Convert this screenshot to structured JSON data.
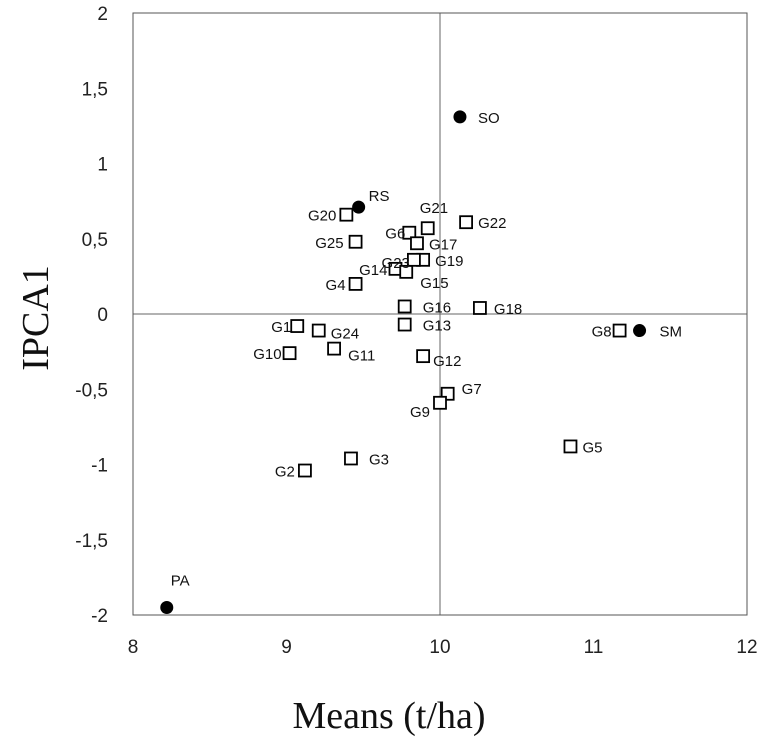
{
  "chart_data": {
    "type": "scatter",
    "title": "",
    "xlabel": "Means (t/ha)",
    "ylabel": "IPCA1",
    "xlim": [
      8,
      12
    ],
    "ylim": [
      -2,
      2
    ],
    "x_ticks": [
      "8",
      "9",
      "10",
      "11",
      "12"
    ],
    "y_ticks": [
      "-2",
      "-1,5",
      "-1",
      "-0,5",
      "0",
      "0,5",
      "1",
      "1,5",
      "2"
    ],
    "grid": false,
    "reference_lines": {
      "x": 10.0,
      "y": 0
    },
    "series": [
      {
        "marker": "open-square",
        "points": [
          {
            "label": "G1",
            "x": 9.07,
            "y": -0.08
          },
          {
            "label": "G2",
            "x": 9.12,
            "y": -1.04
          },
          {
            "label": "G3",
            "x": 9.42,
            "y": -0.96
          },
          {
            "label": "G4",
            "x": 9.45,
            "y": 0.2
          },
          {
            "label": "G5",
            "x": 10.85,
            "y": -0.88
          },
          {
            "label": "G6",
            "x": 9.8,
            "y": 0.54
          },
          {
            "label": "G7",
            "x": 10.05,
            "y": -0.53
          },
          {
            "label": "G8",
            "x": 11.17,
            "y": -0.11
          },
          {
            "label": "G9",
            "x": 10.0,
            "y": -0.59
          },
          {
            "label": "G10",
            "x": 9.02,
            "y": -0.26
          },
          {
            "label": "G11",
            "x": 9.31,
            "y": -0.23
          },
          {
            "label": "G12",
            "x": 9.89,
            "y": -0.28
          },
          {
            "label": "G13",
            "x": 9.77,
            "y": -0.07
          },
          {
            "label": "G14",
            "x": 9.71,
            "y": 0.3
          },
          {
            "label": "G15",
            "x": 9.78,
            "y": 0.28
          },
          {
            "label": "G16",
            "x": 9.77,
            "y": 0.05
          },
          {
            "label": "G17",
            "x": 9.85,
            "y": 0.47
          },
          {
            "label": "G18",
            "x": 10.26,
            "y": 0.04
          },
          {
            "label": "G19",
            "x": 9.89,
            "y": 0.36
          },
          {
            "label": "G20",
            "x": 9.39,
            "y": 0.66
          },
          {
            "label": "G21",
            "x": 9.92,
            "y": 0.57
          },
          {
            "label": "G22",
            "x": 10.17,
            "y": 0.61
          },
          {
            "label": "G23",
            "x": 9.83,
            "y": 0.36
          },
          {
            "label": "G24",
            "x": 9.21,
            "y": -0.11
          },
          {
            "label": "G25",
            "x": 9.45,
            "y": 0.48
          }
        ]
      },
      {
        "marker": "filled-circle",
        "points": [
          {
            "label": "SO",
            "x": 10.13,
            "y": 1.31
          },
          {
            "label": "RS",
            "x": 9.47,
            "y": 0.71
          },
          {
            "label": "SM",
            "x": 11.3,
            "y": -0.11
          },
          {
            "label": "PA",
            "x": 8.22,
            "y": -1.95
          }
        ]
      }
    ]
  }
}
